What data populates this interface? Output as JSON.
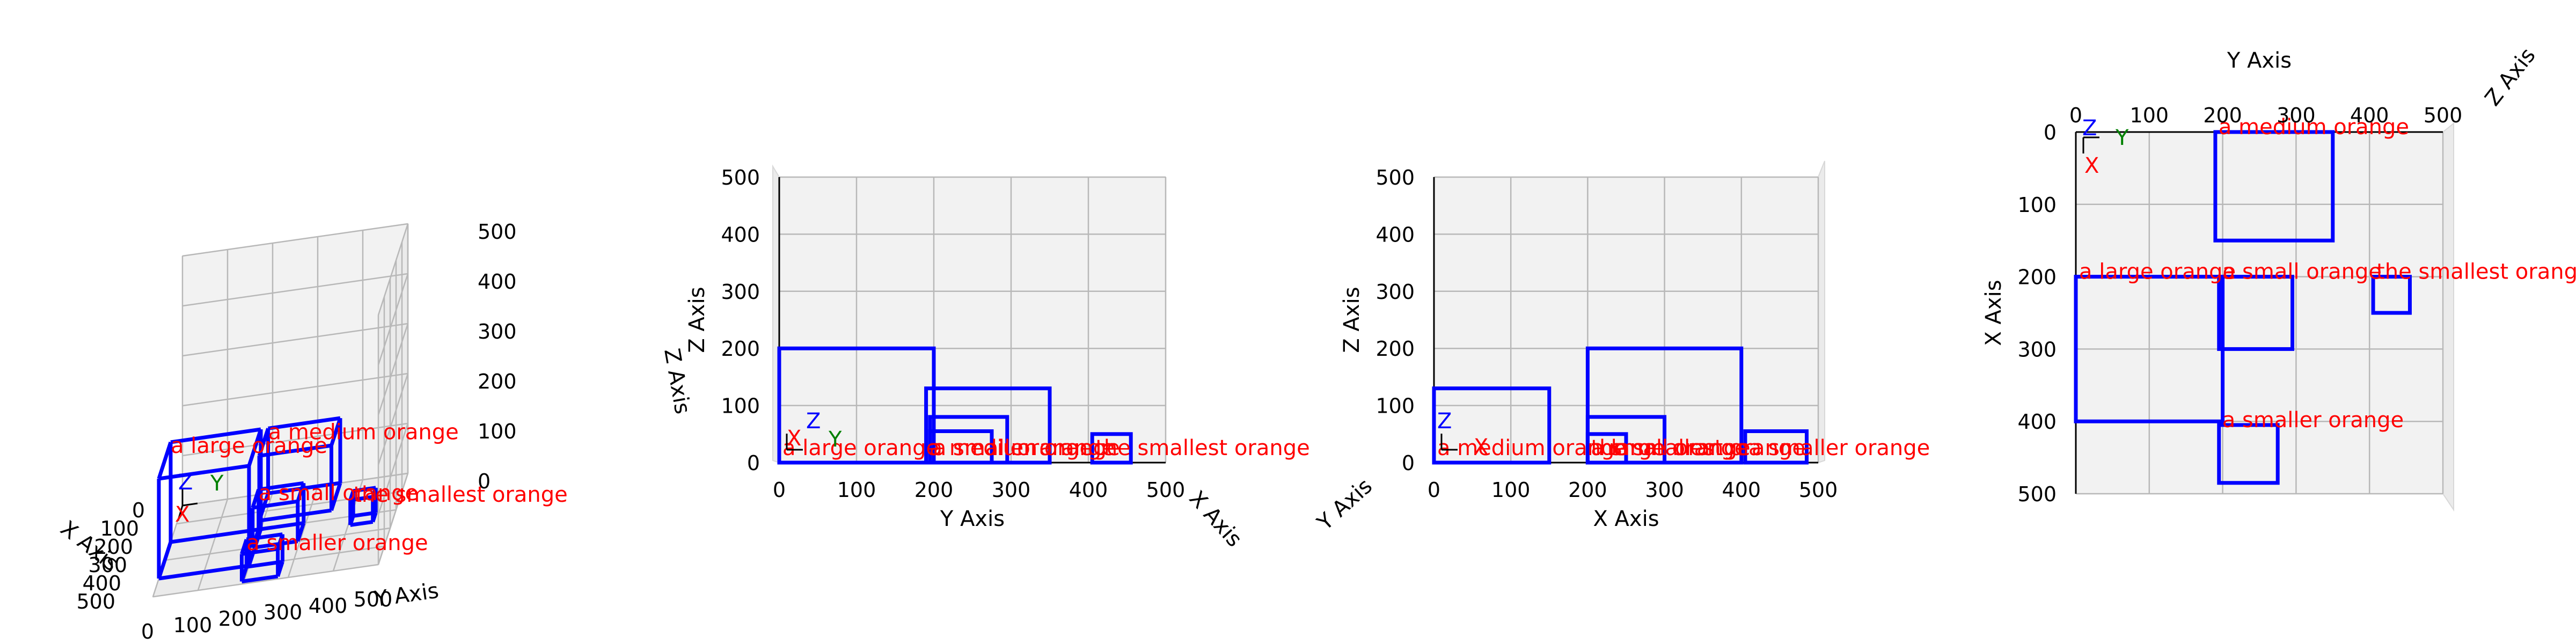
{
  "colors": {
    "box": "#0000ff",
    "label": "#ff0000",
    "axis_x": "#ff0000",
    "axis_y": "#008000",
    "axis_z": "#0000ff",
    "pane": "#f2f2f2",
    "grid": "#b8b8b8"
  },
  "views": [
    {
      "view": "perspective",
      "x_label": "X Axis",
      "y_label": "Y Axis",
      "z_label": "Z Axis",
      "x_ticks": [
        "0",
        "100",
        "200",
        "300",
        "400",
        "500"
      ],
      "y_ticks": [
        "0",
        "100",
        "200",
        "300",
        "400",
        "500"
      ],
      "z_ticks": [
        "0",
        "100",
        "200",
        "300",
        "400",
        "500"
      ],
      "triad": [
        "X",
        "Y",
        "Z"
      ]
    },
    {
      "view": "front (Y–Z)",
      "x_label": "Y Axis",
      "y_label": "Z Axis",
      "depth_label": "X Axis",
      "x_ticks": [
        "0",
        "100",
        "200",
        "300",
        "400",
        "500"
      ],
      "y_ticks": [
        "0",
        "100",
        "200",
        "300",
        "400",
        "500"
      ],
      "triad": [
        "X",
        "Y",
        "Z"
      ]
    },
    {
      "view": "side (X–Z)",
      "x_label": "X Axis",
      "y_label": "Z Axis",
      "depth_label": "Y Axis",
      "x_ticks": [
        "0",
        "100",
        "200",
        "300",
        "400",
        "500"
      ],
      "y_ticks": [
        "0",
        "100",
        "200",
        "300",
        "400",
        "500"
      ],
      "triad": [
        "X",
        "Y",
        "Z"
      ]
    },
    {
      "view": "top (X–Y)",
      "x_label": "Y Axis",
      "y_label": "X Axis",
      "depth_label": "Z Axis",
      "x_ticks": [
        "0",
        "100",
        "200",
        "300",
        "400",
        "500"
      ],
      "y_ticks": [
        "0",
        "100",
        "200",
        "300",
        "400",
        "500"
      ],
      "triad": [
        "X",
        "Y",
        "Z"
      ]
    }
  ],
  "chart_data": {
    "type": "3d-bounding-boxes",
    "xlim": [
      0,
      500
    ],
    "ylim": [
      0,
      500
    ],
    "zlim": [
      0,
      500
    ],
    "objects": [
      {
        "label": "a large orange",
        "x": [
          200,
          400
        ],
        "y": [
          0,
          200
        ],
        "z": [
          0,
          200
        ]
      },
      {
        "label": "a medium orange",
        "x": [
          0,
          150
        ],
        "y": [
          190,
          350
        ],
        "z": [
          0,
          130
        ]
      },
      {
        "label": "a small orange",
        "x": [
          200,
          300
        ],
        "y": [
          195,
          295
        ],
        "z": [
          0,
          80
        ]
      },
      {
        "label": "a smaller orange",
        "x": [
          405,
          485
        ],
        "y": [
          195,
          275
        ],
        "z": [
          0,
          55
        ]
      },
      {
        "label": "the smallest orange",
        "x": [
          200,
          250
        ],
        "y": [
          405,
          455
        ],
        "z": [
          0,
          50
        ]
      }
    ]
  }
}
